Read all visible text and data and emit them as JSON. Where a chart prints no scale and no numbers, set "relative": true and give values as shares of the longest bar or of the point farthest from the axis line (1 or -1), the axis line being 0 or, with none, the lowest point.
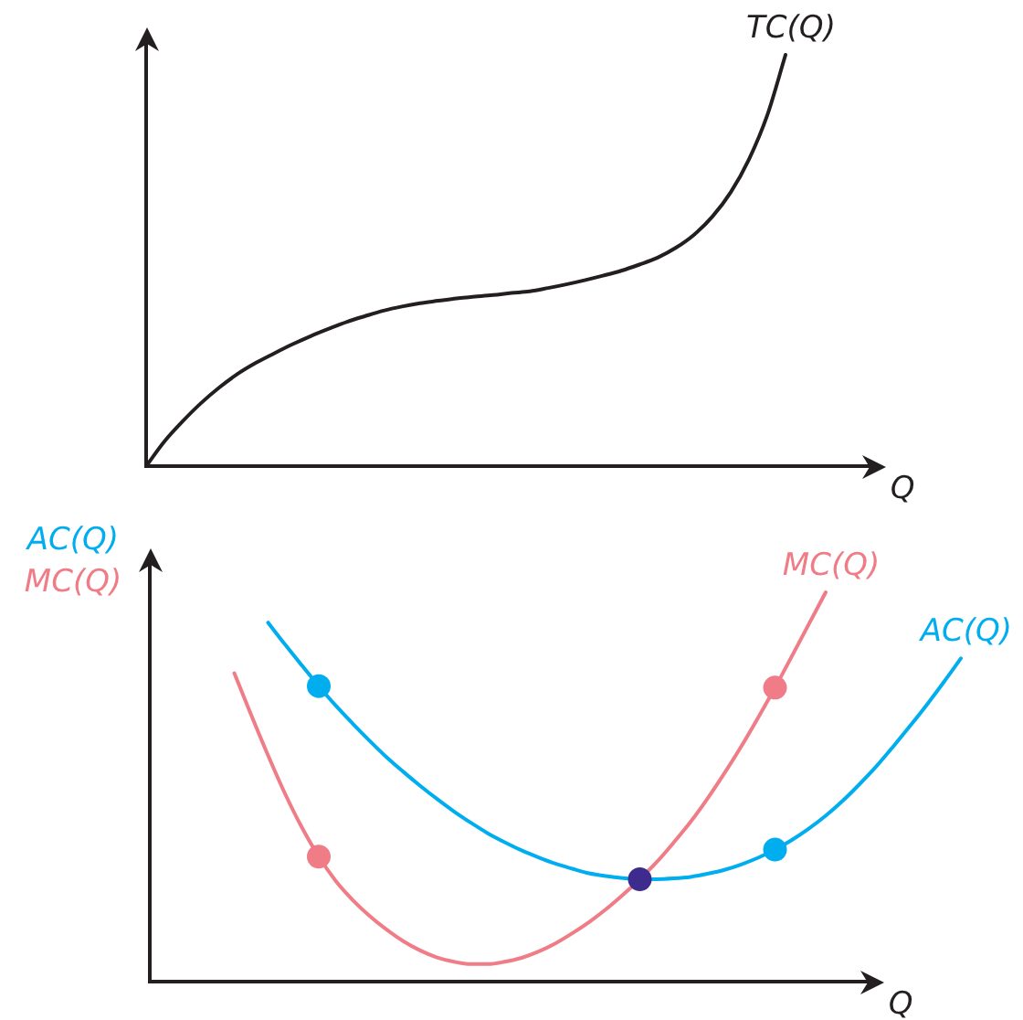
{
  "chart_data": [
    {
      "type": "line",
      "relative": true,
      "xlabel": "Q",
      "categories": [
        null,
        null,
        null,
        null,
        null,
        null,
        null,
        null,
        null,
        null,
        null,
        null,
        null,
        null,
        null,
        null,
        null,
        null,
        null,
        null,
        null,
        null,
        null,
        null,
        null,
        null,
        null,
        null,
        null,
        null,
        null,
        null,
        null,
        null,
        null,
        null
      ],
      "series": [
        {
          "name": "TC(Q)",
          "color": "#231f20",
          "values": [
            0,
            0.06,
            0.109,
            0.153,
            0.191,
            0.224,
            0.251,
            0.274,
            0.296,
            0.316,
            0.334,
            0.351,
            0.365,
            0.378,
            0.388,
            0.396,
            0.402,
            0.408,
            0.412,
            0.416,
            0.421,
            0.425,
            0.433,
            0.442,
            0.452,
            0.463,
            0.475,
            0.49,
            0.507,
            0.531,
            0.563,
            0.607,
            0.666,
            0.746,
            0.853,
            1
          ]
        }
      ]
    },
    {
      "type": "line",
      "relative": true,
      "xlabel": "Q",
      "ylabel": "AC(Q)\nMC(Q)",
      "categories": [
        null,
        null,
        null,
        null,
        null,
        null,
        null,
        null,
        null,
        null,
        null,
        null,
        null,
        null,
        null,
        null,
        null,
        null,
        null,
        null,
        null,
        null,
        null,
        null,
        null,
        null,
        null,
        null,
        null,
        null,
        null,
        null,
        null,
        null,
        null,
        null,
        null,
        null,
        null,
        null,
        null,
        null,
        null,
        null,
        null,
        null,
        null,
        null,
        null
      ],
      "series": [
        {
          "name": "AC(Q)",
          "color": "#00aeef",
          "values": [
            null,
            null,
            null,
            null,
            null,
            null,
            null,
            0.922,
            0.866,
            0.812,
            0.759,
            0.709,
            0.663,
            0.619,
            0.577,
            0.539,
            0.503,
            0.469,
            0.437,
            0.408,
            0.381,
            0.358,
            0.337,
            0.319,
            0.303,
            0.29,
            0.278,
            0.271,
            0.266,
            0.263,
            0.263,
            0.265,
            0.269,
            0.277,
            0.287,
            0.301,
            0.318,
            0.339,
            0.364,
            0.393,
            0.426,
            0.464,
            0.507,
            0.553,
            0.604,
            0.657,
            0.712,
            0.77,
            0.83
          ]
        },
        {
          "name": "MC(Q)",
          "color": "#ef7c86",
          "values": [
            null,
            null,
            null,
            null,
            null,
            0.792,
            0.685,
            0.581,
            0.483,
            0.396,
            0.321,
            0.259,
            0.21,
            0.169,
            0.134,
            0.104,
            0.08,
            0.062,
            0.051,
            0.045,
            0.045,
            0.051,
            0.061,
            0.077,
            0.098,
            0.124,
            0.153,
            0.186,
            0.223,
            0.263,
            0.307,
            0.357,
            0.41,
            0.47,
            0.535,
            0.604,
            0.678,
            0.755,
            0.836,
            0.918,
            1,
            null,
            null,
            null,
            null,
            null,
            null,
            null,
            null
          ]
        },
        {
          "color": "#00aeef",
          "marker": "circle",
          "values": [
            null,
            null,
            null,
            null,
            null,
            null,
            null,
            null,
            null,
            null,
            0.759,
            null,
            null,
            null,
            null,
            null,
            null,
            null,
            null,
            null,
            null,
            null,
            null,
            null,
            null,
            null,
            null,
            null,
            null,
            null,
            null,
            null,
            null,
            null,
            null,
            null,
            null,
            null,
            null,
            null,
            null,
            null,
            null,
            null,
            null,
            null,
            null,
            null,
            null
          ]
        },
        {
          "color": "#00aeef",
          "marker": "circle",
          "values": [
            null,
            null,
            null,
            null,
            null,
            null,
            null,
            null,
            null,
            null,
            null,
            null,
            null,
            null,
            null,
            null,
            null,
            null,
            null,
            null,
            null,
            null,
            null,
            null,
            null,
            null,
            null,
            null,
            null,
            null,
            null,
            null,
            null,
            null,
            null,
            null,
            null,
            0.339,
            null,
            null,
            null,
            null,
            null,
            null,
            null,
            null,
            null,
            null,
            null
          ]
        },
        {
          "color": "#ef7c86",
          "marker": "circle",
          "values": [
            null,
            null,
            null,
            null,
            null,
            null,
            null,
            null,
            null,
            null,
            0.321,
            null,
            null,
            null,
            null,
            null,
            null,
            null,
            null,
            null,
            null,
            null,
            null,
            null,
            null,
            null,
            null,
            null,
            null,
            null,
            null,
            null,
            null,
            null,
            null,
            null,
            null,
            null,
            null,
            null,
            null,
            null,
            null,
            null,
            null,
            null,
            null,
            null,
            null
          ]
        },
        {
          "color": "#ef7c86",
          "marker": "circle",
          "values": [
            null,
            null,
            null,
            null,
            null,
            null,
            null,
            null,
            null,
            null,
            null,
            null,
            null,
            null,
            null,
            null,
            null,
            null,
            null,
            null,
            null,
            null,
            null,
            null,
            null,
            null,
            null,
            null,
            null,
            null,
            null,
            null,
            null,
            null,
            null,
            null,
            null,
            0.755,
            null,
            null,
            null,
            null,
            null,
            null,
            null,
            null,
            null,
            null,
            null
          ]
        },
        {
          "color": "#3d2b8e",
          "marker": "circle",
          "values": [
            null,
            null,
            null,
            null,
            null,
            null,
            null,
            null,
            null,
            null,
            null,
            null,
            null,
            null,
            null,
            null,
            null,
            null,
            null,
            null,
            null,
            null,
            null,
            null,
            null,
            null,
            null,
            null,
            null,
            0.263,
            null,
            null,
            null,
            null,
            null,
            null,
            null,
            null,
            null,
            null,
            null,
            null,
            null,
            null,
            null,
            null,
            null,
            null,
            null
          ]
        }
      ]
    }
  ]
}
